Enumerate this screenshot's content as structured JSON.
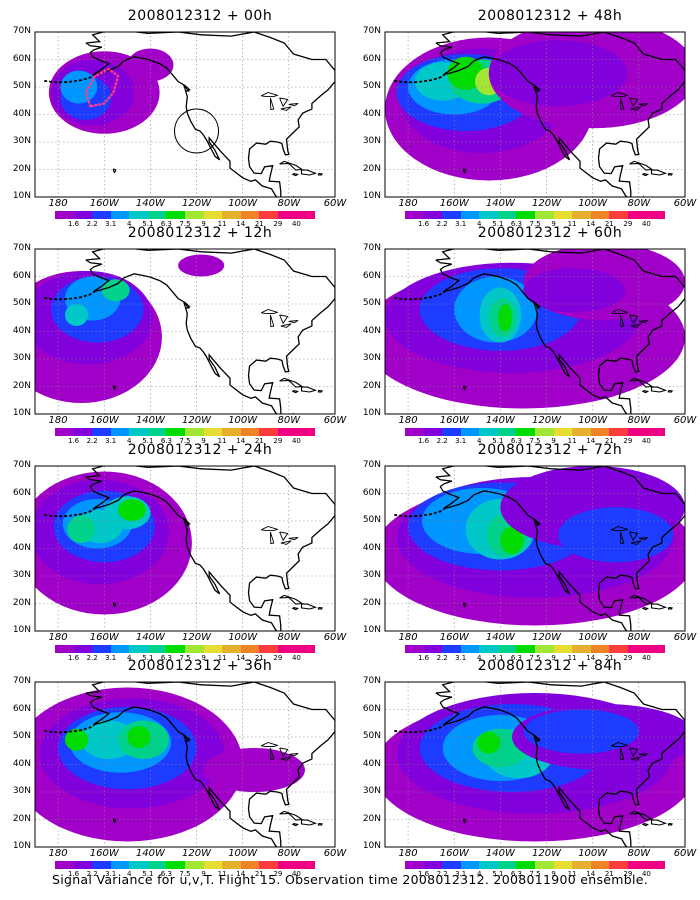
{
  "panels": [
    {
      "title": "2008012312 + 00h",
      "level": 0
    },
    {
      "title": "2008012312 + 48h",
      "level": 4
    },
    {
      "title": "2008012312 + 12h",
      "level": 1
    },
    {
      "title": "2008012312 + 60h",
      "level": 5
    },
    {
      "title": "2008012312 + 24h",
      "level": 2
    },
    {
      "title": "2008012312 + 72h",
      "level": 6
    },
    {
      "title": "2008012312 + 36h",
      "level": 3
    },
    {
      "title": "2008012312 + 84h",
      "level": 7
    }
  ],
  "axes": {
    "lat_labels": [
      "70N",
      "60N",
      "50N",
      "40N",
      "30N",
      "20N",
      "10N"
    ],
    "lon_labels": [
      "180",
      "160W",
      "140W",
      "120W",
      "100W",
      "80W",
      "60W"
    ]
  },
  "colorbar": {
    "labels": [
      "1.6",
      "2.2",
      "3.1",
      "4",
      "5.1",
      "6.3",
      "7.5",
      "9",
      "11",
      "14",
      "21",
      "29",
      "40"
    ],
    "colors": [
      "#a000c8",
      "#8200dc",
      "#1e3cff",
      "#0096ff",
      "#00c8c8",
      "#00d28c",
      "#00dc00",
      "#a0e632",
      "#e6dc32",
      "#e6af2d",
      "#f08228",
      "#fa3c3c",
      "#f00082"
    ]
  },
  "caption": "Signal Variance for u,v,T. Flight 15. Observation time 2008012312. 2008011900 ensemble."
}
